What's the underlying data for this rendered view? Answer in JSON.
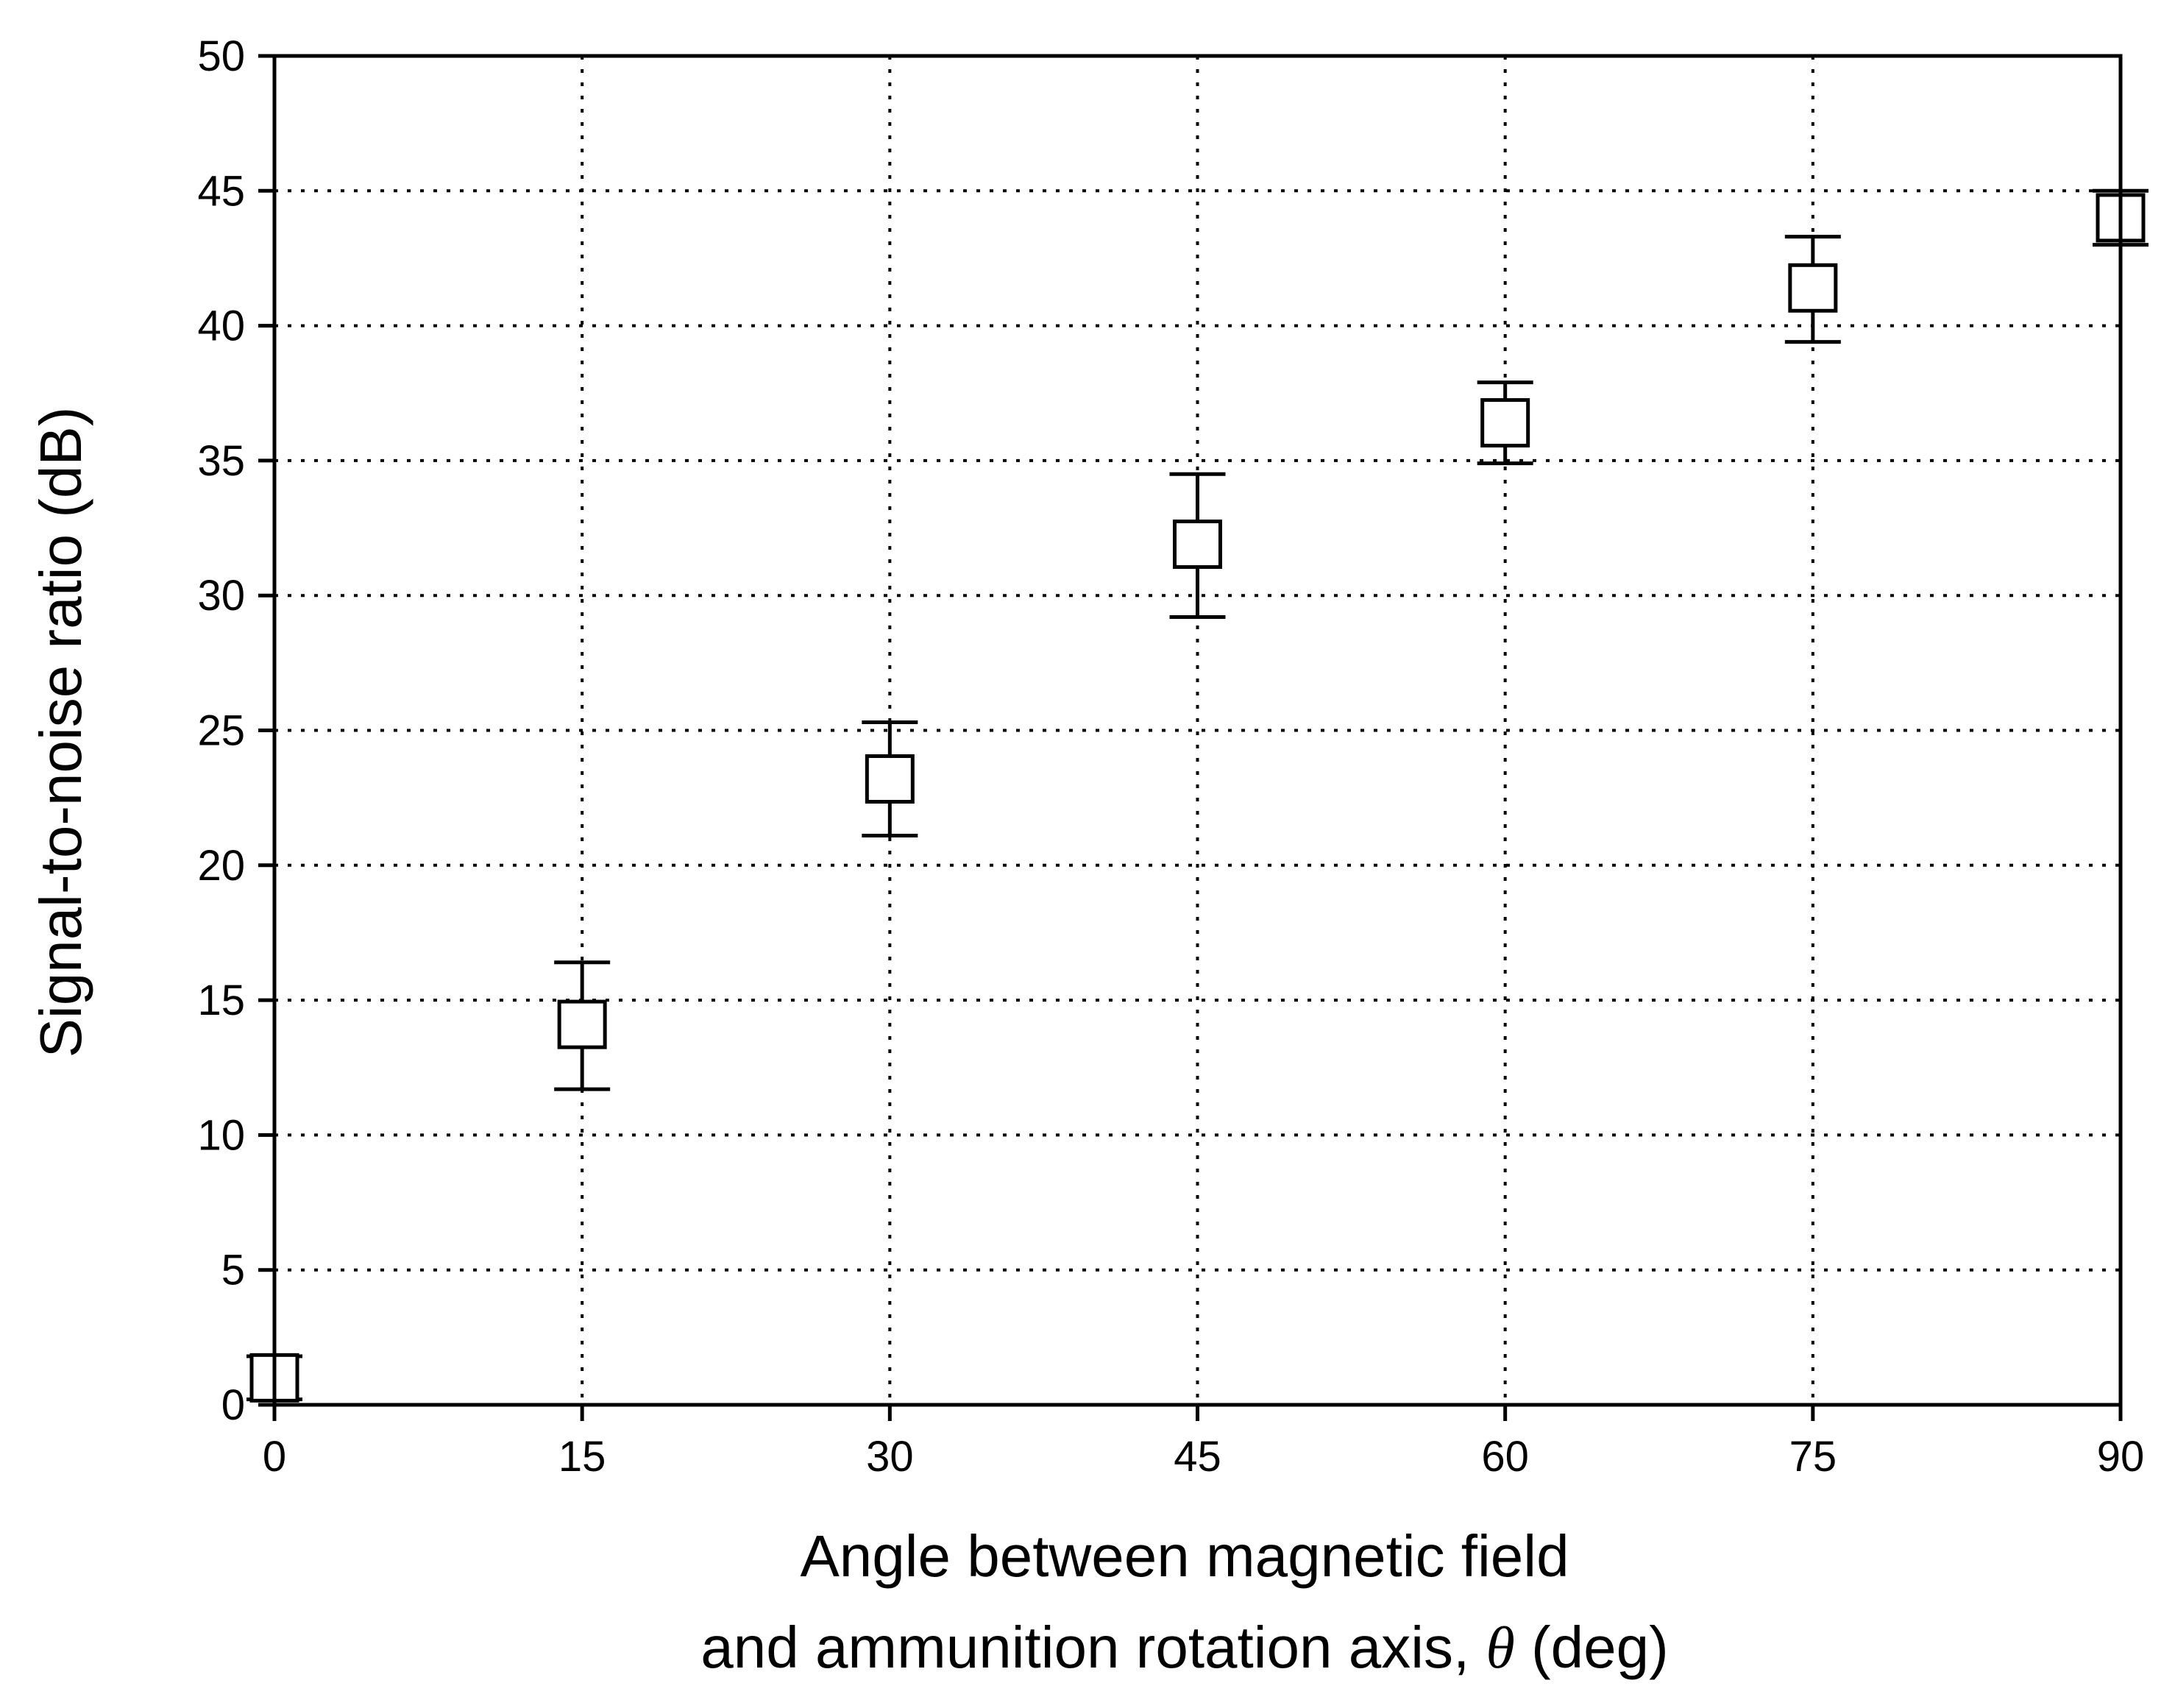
{
  "chart_data": {
    "type": "scatter",
    "title": "",
    "xlabel_line1": "Angle between magnetic field",
    "xlabel_line2_prefix": "and ammunition rotation axis, ",
    "xlabel_symbol": "θ",
    "xlabel_line2_suffix": " (deg)",
    "ylabel": "Signal-to-noise ratio (dB)",
    "xlim": [
      0,
      90
    ],
    "ylim": [
      0,
      50
    ],
    "xticks": [
      0,
      15,
      30,
      45,
      60,
      75,
      90
    ],
    "yticks": [
      0,
      5,
      10,
      15,
      20,
      25,
      30,
      35,
      40,
      45,
      50
    ],
    "grid": true,
    "marker": "open-square",
    "points": [
      {
        "x": 0,
        "y": 1.0,
        "err_low": 0.2,
        "err_high": 1.8
      },
      {
        "x": 15,
        "y": 14.1,
        "err_low": 11.7,
        "err_high": 16.4
      },
      {
        "x": 30,
        "y": 23.2,
        "err_low": 21.1,
        "err_high": 25.3
      },
      {
        "x": 45,
        "y": 31.9,
        "err_low": 29.2,
        "err_high": 34.5
      },
      {
        "x": 60,
        "y": 36.4,
        "err_low": 34.9,
        "err_high": 37.9
      },
      {
        "x": 75,
        "y": 41.4,
        "err_low": 39.4,
        "err_high": 43.3
      },
      {
        "x": 90,
        "y": 44.0,
        "err_low": 43.0,
        "err_high": 45.0
      }
    ]
  }
}
